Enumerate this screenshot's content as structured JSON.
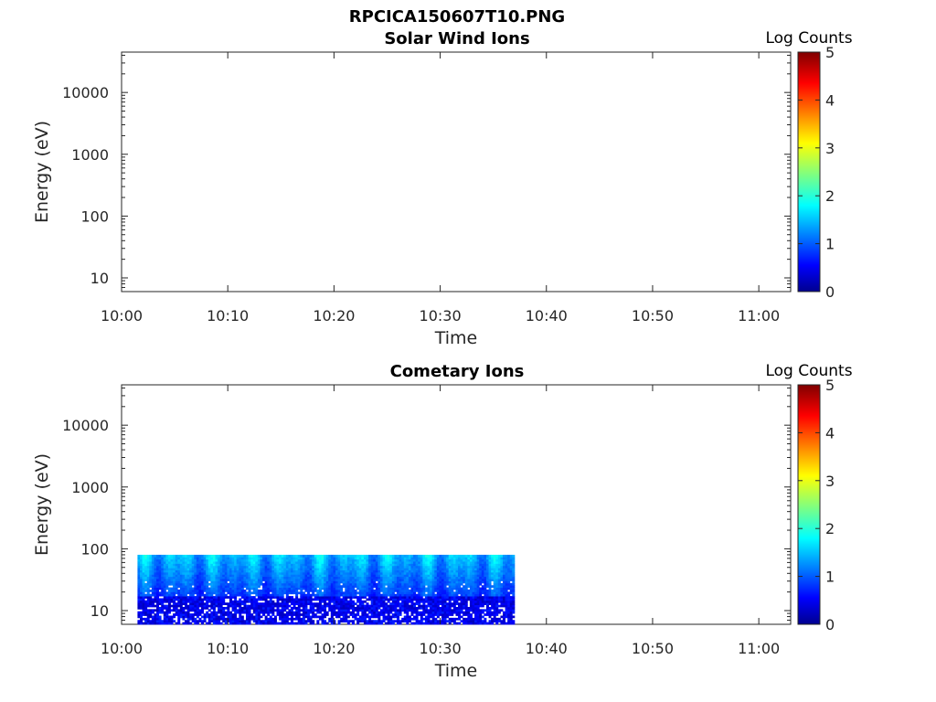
{
  "figure_title": "RPCICA150607T10.PNG",
  "chart_data": [
    {
      "type": "heatmap",
      "title": "Solar Wind Ions",
      "xlabel": "Time",
      "ylabel": "Energy (eV)",
      "x_range": [
        "10:00",
        "11:03"
      ],
      "y_scale": "log",
      "y_range": [
        6,
        45000
      ],
      "x_ticks": [
        "10:00",
        "10:10",
        "10:20",
        "10:30",
        "10:40",
        "10:50",
        "11:00"
      ],
      "y_ticks": [
        "10",
        "100",
        "1000",
        "10000"
      ],
      "colorbar": {
        "label": "Log Counts",
        "range": [
          0,
          5
        ],
        "ticks": [
          "0",
          "1",
          "2",
          "3",
          "4",
          "5"
        ],
        "colormap": "jet"
      },
      "data_coverage": null,
      "grid": false
    },
    {
      "type": "heatmap",
      "title": "Cometary Ions",
      "xlabel": "Time",
      "ylabel": "Energy (eV)",
      "x_range": [
        "10:00",
        "11:03"
      ],
      "y_scale": "log",
      "y_range": [
        6,
        45000
      ],
      "x_ticks": [
        "10:00",
        "10:10",
        "10:20",
        "10:30",
        "10:40",
        "10:50",
        "11:00"
      ],
      "y_ticks": [
        "10",
        "100",
        "1000",
        "10000"
      ],
      "colorbar": {
        "label": "Log Counts",
        "range": [
          0,
          5
        ],
        "ticks": [
          "0",
          "1",
          "2",
          "3",
          "4",
          "5"
        ],
        "colormap": "jet"
      },
      "data_coverage": {
        "time_start": "10:01.5",
        "time_end": "10:37",
        "energy_min_eV": 6,
        "energy_max_eV": 80,
        "typical_log_counts": [
          0.3,
          1.8
        ]
      },
      "grid": false
    }
  ]
}
